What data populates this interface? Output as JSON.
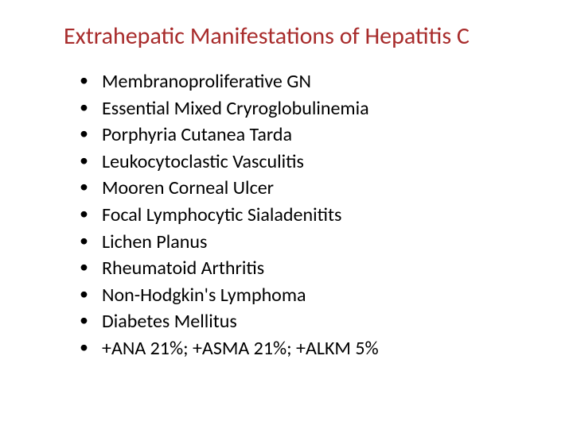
{
  "slide": {
    "title": "Extrahepatic Manifestations of Hepatitis C",
    "title_color": "#a82c2c",
    "bullet_color": "#000000",
    "text_color": "#000000",
    "background_color": "#ffffff",
    "title_fontsize": 30,
    "body_fontsize": 24,
    "items": [
      "Membranoproliferative GN",
      "Essential Mixed Cryroglobulinemia",
      "Porphyria Cutanea Tarda",
      "Leukocytoclastic Vasculitis",
      "Mooren Corneal Ulcer",
      "Focal Lymphocytic Sialadenitits",
      "Lichen Planus",
      "Rheumatoid Arthritis",
      "Non-Hodgkin's Lymphoma",
      "Diabetes Mellitus",
      "+ANA 21%; +ASMA 21%; +ALKM 5%"
    ]
  }
}
